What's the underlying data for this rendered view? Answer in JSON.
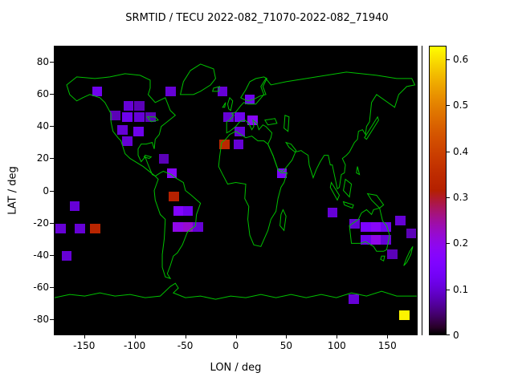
{
  "figure": {
    "title": "SRMTID / TECU 2022-082_71070-2022-082_71940"
  },
  "chart_data": {
    "type": "heatmap",
    "title": "SRMTID / TECU 2022-082_71070-2022-082_71940",
    "xlabel": "LON / deg",
    "ylabel": "LAT / deg",
    "xlim": [
      -180,
      180
    ],
    "ylim": [
      -90,
      90
    ],
    "xticks": [
      -150,
      -100,
      -50,
      0,
      50,
      100,
      150
    ],
    "yticks": [
      80,
      60,
      40,
      20,
      0,
      -20,
      -40,
      -60,
      -80
    ],
    "grid": false,
    "map_background": "#000000",
    "coastline_color": "#00c000",
    "page_background": "#ffffff",
    "colorbar": {
      "min": 0,
      "max": 0.63,
      "ticks": [
        0,
        0.1,
        0.2,
        0.3,
        0.4,
        0.5,
        0.6
      ],
      "palette": "gnuplot-pm3d",
      "palette_formula": "r=sqrt(t), g=t^3, b=max(0,sin(2*pi*t)) with t=value/max"
    },
    "bin_size": {
      "lon_deg": 10,
      "lat_deg": 6
    },
    "cells": [
      {
        "lon": -138,
        "lat": 62,
        "v": 0.12
      },
      {
        "lon": -65,
        "lat": 62,
        "v": 0.1
      },
      {
        "lon": -14,
        "lat": 62,
        "v": 0.1
      },
      {
        "lon": 13,
        "lat": 57,
        "v": 0.12
      },
      {
        "lon": -107,
        "lat": 53,
        "v": 0.1
      },
      {
        "lon": -96,
        "lat": 53,
        "v": 0.08
      },
      {
        "lon": -120,
        "lat": 47,
        "v": 0.08
      },
      {
        "lon": -108,
        "lat": 46,
        "v": 0.12
      },
      {
        "lon": -96,
        "lat": 46,
        "v": 0.1
      },
      {
        "lon": -85,
        "lat": 46,
        "v": 0.08
      },
      {
        "lon": -8,
        "lat": 46,
        "v": 0.1
      },
      {
        "lon": 3,
        "lat": 46,
        "v": 0.12
      },
      {
        "lon": 16,
        "lat": 44,
        "v": 0.18
      },
      {
        "lon": -113,
        "lat": 38,
        "v": 0.1
      },
      {
        "lon": -97,
        "lat": 37,
        "v": 0.12
      },
      {
        "lon": 3,
        "lat": 37,
        "v": 0.1
      },
      {
        "lon": -108,
        "lat": 31,
        "v": 0.1
      },
      {
        "lon": -12,
        "lat": 29,
        "v": 0.34
      },
      {
        "lon": 2,
        "lat": 29,
        "v": 0.1
      },
      {
        "lon": -72,
        "lat": 20,
        "v": 0.08
      },
      {
        "lon": -64,
        "lat": 11,
        "v": 0.18
      },
      {
        "lon": 45,
        "lat": 11,
        "v": 0.15
      },
      {
        "lon": -62,
        "lat": -3,
        "v": 0.32
      },
      {
        "lon": -160,
        "lat": -9,
        "v": 0.1
      },
      {
        "lon": -57,
        "lat": -12,
        "v": 0.16
      },
      {
        "lon": -48,
        "lat": -12,
        "v": 0.12
      },
      {
        "lon": 95,
        "lat": -13,
        "v": 0.1
      },
      {
        "lon": -174,
        "lat": -23,
        "v": 0.1
      },
      {
        "lon": -155,
        "lat": -23,
        "v": 0.1
      },
      {
        "lon": -140,
        "lat": -23,
        "v": 0.33
      },
      {
        "lon": -58,
        "lat": -22,
        "v": 0.2
      },
      {
        "lon": -48,
        "lat": -22,
        "v": 0.22
      },
      {
        "lon": -38,
        "lat": -22,
        "v": 0.1
      },
      {
        "lon": 117,
        "lat": -20,
        "v": 0.1
      },
      {
        "lon": 128,
        "lat": -22,
        "v": 0.15
      },
      {
        "lon": 138,
        "lat": -22,
        "v": 0.18
      },
      {
        "lon": 148,
        "lat": -22,
        "v": 0.12
      },
      {
        "lon": 162,
        "lat": -18,
        "v": 0.1
      },
      {
        "lon": 128,
        "lat": -30,
        "v": 0.12
      },
      {
        "lon": 138,
        "lat": -30,
        "v": 0.2
      },
      {
        "lon": 148,
        "lat": -30,
        "v": 0.1
      },
      {
        "lon": 173,
        "lat": -26,
        "v": 0.08
      },
      {
        "lon": -168,
        "lat": -40,
        "v": 0.1
      },
      {
        "lon": 154,
        "lat": -39,
        "v": 0.08
      },
      {
        "lon": 116,
        "lat": -67,
        "v": 0.1
      },
      {
        "lon": 166,
        "lat": -77,
        "v": 0.62
      }
    ]
  }
}
